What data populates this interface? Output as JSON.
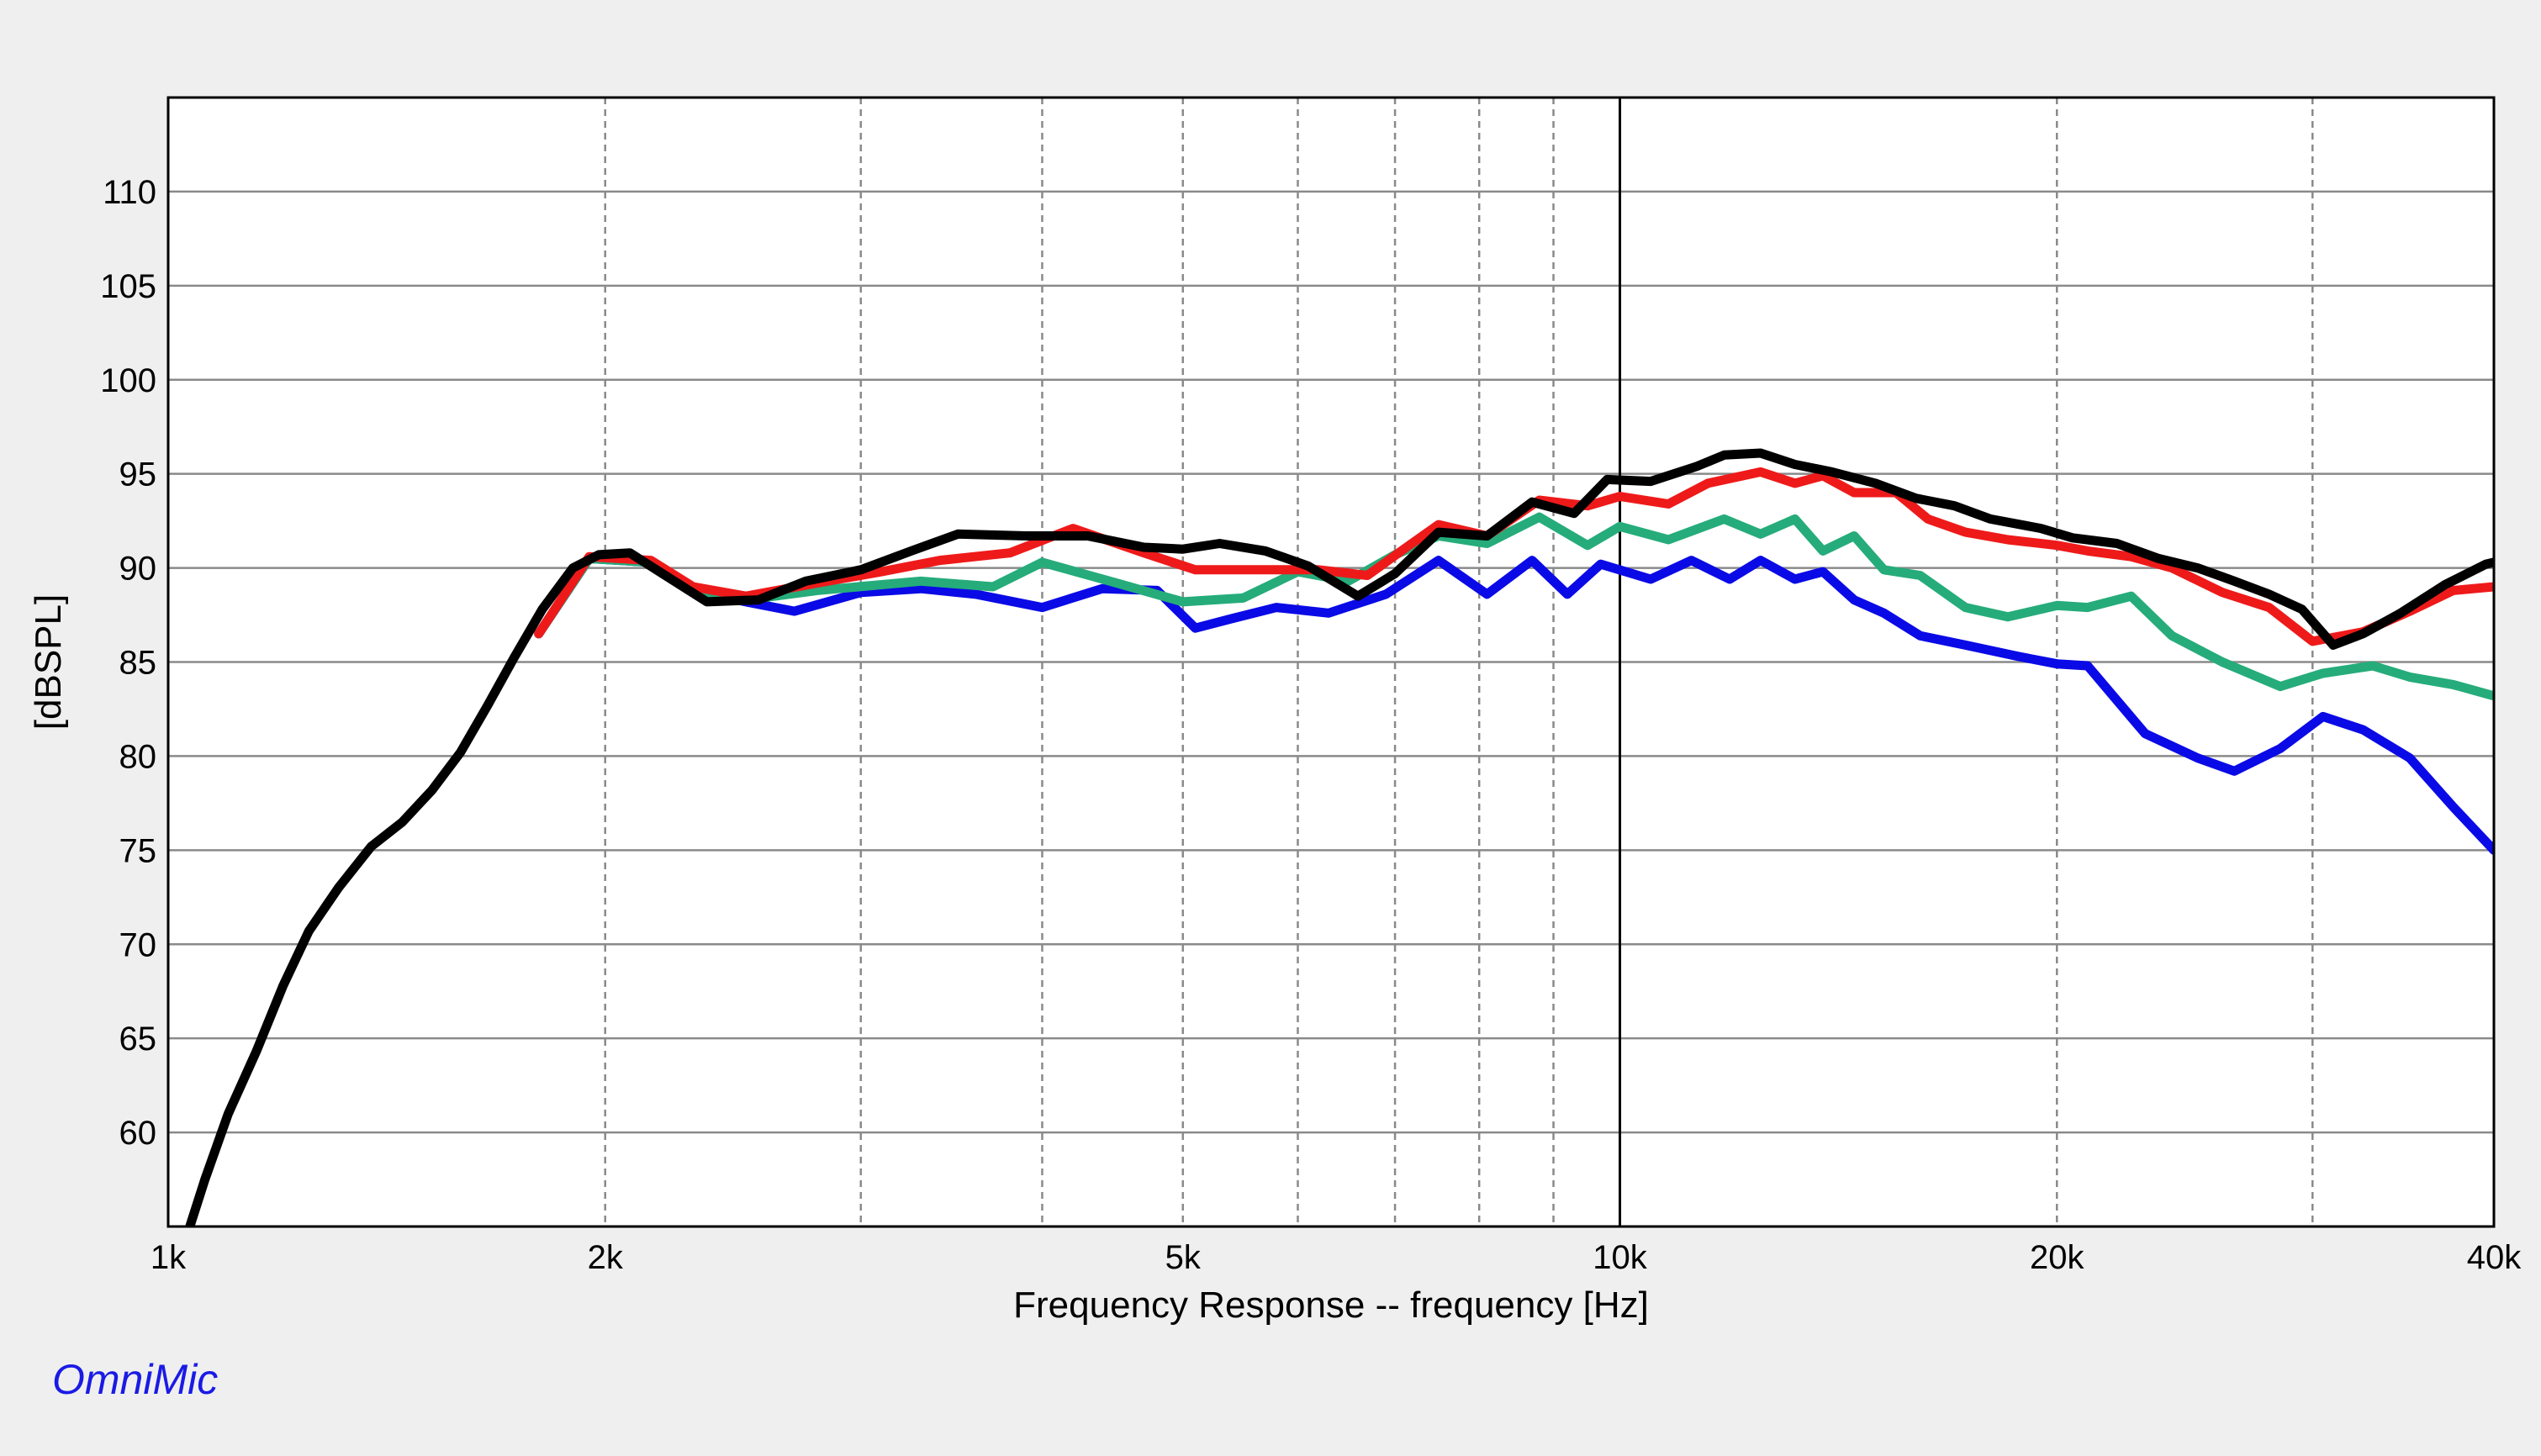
{
  "brand": "OmniMic",
  "chart_data": {
    "type": "line",
    "title": "",
    "xlabel": "Frequency Response -- frequency [Hz]",
    "ylabel": "[dBSPL]",
    "xscale": "log",
    "xlim": [
      1000,
      40000
    ],
    "ylim": [
      55,
      115
    ],
    "grid": true,
    "legend": "none",
    "x_ticks": [
      {
        "value": 1000,
        "label": "1k"
      },
      {
        "value": 2000,
        "label": "2k"
      },
      {
        "value": 5000,
        "label": "5k"
      },
      {
        "value": 10000,
        "label": "10k"
      },
      {
        "value": 20000,
        "label": "20k"
      },
      {
        "value": 40000,
        "label": "40k"
      }
    ],
    "x_minor_grid": [
      3000,
      4000,
      6000,
      7000,
      8000,
      9000,
      30000
    ],
    "y_ticks": [
      60,
      65,
      70,
      75,
      80,
      85,
      90,
      95,
      100,
      105,
      110
    ],
    "series": [
      {
        "color": "#0a0ae6",
        "points": [
          [
            1800,
            86.5
          ],
          [
            1950,
            90.5
          ],
          [
            2150,
            90.3
          ],
          [
            2300,
            88.8
          ],
          [
            2500,
            88.2
          ],
          [
            2700,
            87.7
          ],
          [
            3000,
            88.7
          ],
          [
            3300,
            88.9
          ],
          [
            3600,
            88.6
          ],
          [
            4000,
            87.9
          ],
          [
            4400,
            88.9
          ],
          [
            4800,
            88.8
          ],
          [
            5100,
            86.8
          ],
          [
            5400,
            87.3
          ],
          [
            5800,
            87.9
          ],
          [
            6300,
            87.6
          ],
          [
            6900,
            88.6
          ],
          [
            7500,
            90.4
          ],
          [
            8100,
            88.6
          ],
          [
            8700,
            90.4
          ],
          [
            9200,
            88.6
          ],
          [
            9700,
            90.2
          ],
          [
            10500,
            89.4
          ],
          [
            11200,
            90.4
          ],
          [
            11900,
            89.4
          ],
          [
            12500,
            90.4
          ],
          [
            13200,
            89.4
          ],
          [
            13800,
            89.8
          ],
          [
            14500,
            88.3
          ],
          [
            15200,
            87.6
          ],
          [
            16100,
            86.4
          ],
          [
            17300,
            85.9
          ],
          [
            18800,
            85.3
          ],
          [
            20000,
            84.9
          ],
          [
            21000,
            84.8
          ],
          [
            23000,
            81.2
          ],
          [
            25000,
            79.9
          ],
          [
            26500,
            79.2
          ],
          [
            28500,
            80.4
          ],
          [
            30500,
            82.1
          ],
          [
            32500,
            81.4
          ],
          [
            35000,
            79.9
          ],
          [
            37500,
            77.3
          ],
          [
            40000,
            75.0
          ]
        ]
      },
      {
        "color": "#25ac7a",
        "points": [
          [
            1800,
            86.5
          ],
          [
            1950,
            90.5
          ],
          [
            2150,
            90.3
          ],
          [
            2300,
            88.8
          ],
          [
            2500,
            88.3
          ],
          [
            2800,
            88.8
          ],
          [
            3300,
            89.3
          ],
          [
            3700,
            89.0
          ],
          [
            4000,
            90.3
          ],
          [
            4500,
            89.2
          ],
          [
            5000,
            88.2
          ],
          [
            5500,
            88.4
          ],
          [
            6000,
            89.8
          ],
          [
            6500,
            89.3
          ],
          [
            7000,
            90.7
          ],
          [
            7500,
            91.7
          ],
          [
            8100,
            91.3
          ],
          [
            8800,
            92.7
          ],
          [
            9500,
            91.2
          ],
          [
            10000,
            92.2
          ],
          [
            10800,
            91.5
          ],
          [
            11800,
            92.6
          ],
          [
            12500,
            91.8
          ],
          [
            13200,
            92.6
          ],
          [
            13800,
            90.9
          ],
          [
            14500,
            91.7
          ],
          [
            15200,
            89.9
          ],
          [
            16100,
            89.6
          ],
          [
            17300,
            87.9
          ],
          [
            18500,
            87.4
          ],
          [
            20000,
            88.0
          ],
          [
            21000,
            87.9
          ],
          [
            22500,
            88.5
          ],
          [
            24000,
            86.4
          ],
          [
            26000,
            85.0
          ],
          [
            28500,
            83.7
          ],
          [
            30500,
            84.4
          ],
          [
            33000,
            84.8
          ],
          [
            35000,
            84.2
          ],
          [
            37500,
            83.8
          ],
          [
            40000,
            83.2
          ]
        ]
      },
      {
        "color": "#ee1a1a",
        "points": [
          [
            1800,
            86.5
          ],
          [
            1950,
            90.6
          ],
          [
            2150,
            90.4
          ],
          [
            2300,
            89.0
          ],
          [
            2500,
            88.5
          ],
          [
            2800,
            89.2
          ],
          [
            3100,
            89.8
          ],
          [
            3400,
            90.4
          ],
          [
            3800,
            90.8
          ],
          [
            4200,
            92.1
          ],
          [
            4700,
            90.8
          ],
          [
            5100,
            89.9
          ],
          [
            5700,
            89.9
          ],
          [
            6200,
            89.9
          ],
          [
            6700,
            89.6
          ],
          [
            7100,
            91.0
          ],
          [
            7500,
            92.3
          ],
          [
            8100,
            91.7
          ],
          [
            8800,
            93.6
          ],
          [
            9500,
            93.3
          ],
          [
            10000,
            93.8
          ],
          [
            10800,
            93.4
          ],
          [
            11500,
            94.5
          ],
          [
            12500,
            95.1
          ],
          [
            13200,
            94.5
          ],
          [
            13800,
            94.9
          ],
          [
            14500,
            94.0
          ],
          [
            15500,
            94.0
          ],
          [
            16300,
            92.6
          ],
          [
            17300,
            91.9
          ],
          [
            18500,
            91.5
          ],
          [
            20000,
            91.2
          ],
          [
            21000,
            90.9
          ],
          [
            22500,
            90.6
          ],
          [
            24000,
            90.0
          ],
          [
            26000,
            88.7
          ],
          [
            28000,
            87.9
          ],
          [
            30000,
            86.1
          ],
          [
            32500,
            86.6
          ],
          [
            35000,
            87.7
          ],
          [
            37500,
            88.8
          ],
          [
            40000,
            89.0
          ]
        ]
      },
      {
        "color": "#000000",
        "points": [
          [
            1030,
            54.5
          ],
          [
            1060,
            57.5
          ],
          [
            1100,
            61.0
          ],
          [
            1150,
            64.3
          ],
          [
            1200,
            67.8
          ],
          [
            1250,
            70.7
          ],
          [
            1310,
            73.0
          ],
          [
            1380,
            75.2
          ],
          [
            1450,
            76.5
          ],
          [
            1520,
            78.2
          ],
          [
            1590,
            80.2
          ],
          [
            1660,
            82.7
          ],
          [
            1730,
            85.2
          ],
          [
            1810,
            87.8
          ],
          [
            1900,
            90.0
          ],
          [
            1980,
            90.7
          ],
          [
            2080,
            90.8
          ],
          [
            2200,
            89.6
          ],
          [
            2350,
            88.2
          ],
          [
            2550,
            88.3
          ],
          [
            2750,
            89.3
          ],
          [
            3000,
            89.9
          ],
          [
            3250,
            90.9
          ],
          [
            3500,
            91.8
          ],
          [
            3900,
            91.7
          ],
          [
            4300,
            91.7
          ],
          [
            4700,
            91.1
          ],
          [
            5000,
            91.0
          ],
          [
            5300,
            91.3
          ],
          [
            5700,
            90.9
          ],
          [
            6100,
            90.1
          ],
          [
            6600,
            88.5
          ],
          [
            7000,
            89.7
          ],
          [
            7500,
            91.9
          ],
          [
            8100,
            91.7
          ],
          [
            8700,
            93.5
          ],
          [
            9300,
            92.9
          ],
          [
            9800,
            94.7
          ],
          [
            10500,
            94.6
          ],
          [
            11300,
            95.4
          ],
          [
            11800,
            96.0
          ],
          [
            12500,
            96.1
          ],
          [
            13200,
            95.5
          ],
          [
            14000,
            95.1
          ],
          [
            15000,
            94.5
          ],
          [
            16000,
            93.7
          ],
          [
            17000,
            93.3
          ],
          [
            18000,
            92.6
          ],
          [
            19500,
            92.1
          ],
          [
            20500,
            91.6
          ],
          [
            22000,
            91.3
          ],
          [
            23500,
            90.5
          ],
          [
            25000,
            90.0
          ],
          [
            26500,
            89.3
          ],
          [
            28000,
            88.6
          ],
          [
            29500,
            87.8
          ],
          [
            31000,
            85.9
          ],
          [
            32500,
            86.5
          ],
          [
            34500,
            87.6
          ],
          [
            37000,
            89.1
          ],
          [
            39500,
            90.2
          ],
          [
            40000,
            90.3
          ]
        ]
      }
    ]
  }
}
